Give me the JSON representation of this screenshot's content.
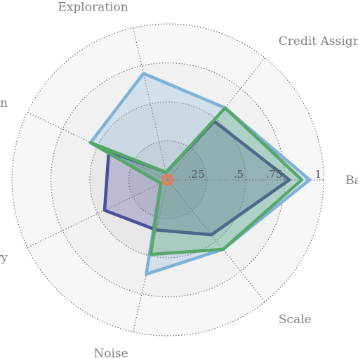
{
  "chart_data": {
    "type": "radar",
    "axes": [
      "Basic",
      "Credit Assignment",
      "Exploration",
      "Generalization",
      "Memory",
      "Noise",
      "Scale"
    ],
    "r_ticks": [
      ".25",
      ".5",
      ".75",
      "1"
    ],
    "r_range": [
      0,
      1
    ],
    "grid": true,
    "series": [
      {
        "values": [
          0.91,
          0.59,
          0.7,
          0.55,
          0.05,
          0.62,
          0.57
        ],
        "color": "#7fb2d6"
      },
      {
        "values": [
          0.78,
          0.48,
          0.05,
          0.42,
          0.45,
          0.33,
          0.45
        ],
        "color": "#4b4f9a"
      },
      {
        "values": [
          0.86,
          0.59,
          0.05,
          0.55,
          0.05,
          0.49,
          0.57
        ],
        "color": "#55a868"
      },
      {
        "values": [
          0.03,
          0.03,
          0.03,
          0.03,
          0.03,
          0.03,
          0.03
        ],
        "color": "#e07f5d"
      }
    ]
  }
}
